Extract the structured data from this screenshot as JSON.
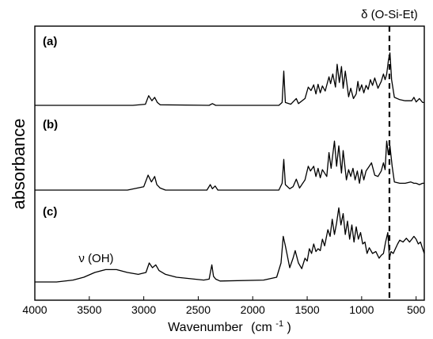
{
  "chart_data": {
    "type": "line",
    "title": "",
    "xlabel": "Wavenumber",
    "xlabel_unit": "(cm",
    "xlabel_unit_sup": "-1",
    "xlabel_unit_close": ")",
    "ylabel": "absorbance",
    "xlim": [
      4000,
      425
    ],
    "x_reversed": true,
    "xticks": [
      4000,
      3500,
      3000,
      2500,
      2000,
      1500,
      1000,
      500
    ],
    "xtick_labels": [
      "4000",
      "3500",
      "3000",
      "2500",
      "2000",
      "1500",
      "1000",
      "500"
    ],
    "grid": false,
    "legend": "none",
    "line_color": "#000000",
    "annotations": [
      {
        "text": "δ (O-Si-Et)",
        "x": 745,
        "style": "dashed vertical line"
      },
      {
        "text": "ν (OH)",
        "x": 3350,
        "panel": "(c)"
      }
    ],
    "series": [
      {
        "panel": "(a)",
        "x": [
          4000,
          3100,
          2985,
          2955,
          2925,
          2900,
          2875,
          2850,
          2400,
          2370,
          2340,
          1760,
          1730,
          1715,
          1700,
          1650,
          1600,
          1580,
          1520,
          1490,
          1465,
          1440,
          1420,
          1400,
          1380,
          1360,
          1335,
          1300,
          1285,
          1265,
          1240,
          1225,
          1205,
          1185,
          1170,
          1150,
          1120,
          1100,
          1075,
          1050,
          1035,
          1020,
          1000,
          980,
          960,
          940,
          920,
          900,
          880,
          850,
          820,
          800,
          785,
          770,
          755,
          740,
          725,
          700,
          650,
          600,
          540,
          520,
          500,
          470,
          440,
          425
        ],
        "y": [
          0.0,
          0.0,
          0.02,
          0.17,
          0.08,
          0.14,
          0.05,
          0.01,
          0.0,
          0.03,
          0.0,
          0.0,
          0.05,
          0.6,
          0.05,
          0.02,
          0.12,
          0.03,
          0.12,
          0.32,
          0.26,
          0.36,
          0.2,
          0.37,
          0.22,
          0.34,
          0.25,
          0.5,
          0.38,
          0.55,
          0.32,
          0.72,
          0.4,
          0.68,
          0.3,
          0.6,
          0.15,
          0.3,
          0.12,
          0.2,
          0.42,
          0.25,
          0.36,
          0.22,
          0.35,
          0.28,
          0.45,
          0.35,
          0.48,
          0.3,
          0.42,
          0.55,
          0.45,
          0.55,
          0.78,
          0.92,
          0.45,
          0.14,
          0.1,
          0.08,
          0.08,
          0.14,
          0.06,
          0.12,
          0.05,
          0.05
        ]
      },
      {
        "panel": "(b)",
        "x": [
          4000,
          3150,
          3000,
          2960,
          2930,
          2900,
          2880,
          2850,
          2800,
          2420,
          2390,
          2370,
          2345,
          2320,
          1760,
          1730,
          1715,
          1700,
          1660,
          1630,
          1600,
          1570,
          1520,
          1490,
          1470,
          1440,
          1420,
          1400,
          1380,
          1360,
          1320,
          1300,
          1280,
          1250,
          1230,
          1210,
          1185,
          1170,
          1140,
          1120,
          1100,
          1080,
          1060,
          1040,
          1020,
          1000,
          980,
          960,
          930,
          910,
          880,
          850,
          820,
          800,
          785,
          770,
          755,
          740,
          720,
          700,
          650,
          600,
          550,
          520,
          500,
          470,
          440,
          425
        ],
        "y": [
          0.0,
          0.0,
          0.05,
          0.22,
          0.12,
          0.2,
          0.08,
          0.03,
          0.0,
          0.0,
          0.08,
          0.02,
          0.06,
          0.0,
          0.0,
          0.1,
          0.45,
          0.08,
          0.02,
          0.05,
          0.16,
          0.03,
          0.15,
          0.35,
          0.28,
          0.35,
          0.2,
          0.32,
          0.18,
          0.3,
          0.2,
          0.55,
          0.32,
          0.72,
          0.35,
          0.65,
          0.25,
          0.58,
          0.15,
          0.3,
          0.2,
          0.32,
          0.15,
          0.28,
          0.1,
          0.3,
          0.15,
          0.28,
          0.35,
          0.4,
          0.22,
          0.2,
          0.28,
          0.4,
          0.3,
          0.72,
          0.52,
          0.65,
          0.35,
          0.12,
          0.1,
          0.1,
          0.12,
          0.1,
          0.1,
          0.08,
          0.1,
          0.1
        ]
      },
      {
        "panel": "(c)",
        "x": [
          4000,
          3800,
          3650,
          3550,
          3450,
          3350,
          3250,
          3150,
          3050,
          2980,
          2950,
          2920,
          2890,
          2860,
          2800,
          2700,
          2450,
          2400,
          2375,
          2360,
          2340,
          2300,
          1900,
          1780,
          1740,
          1720,
          1700,
          1660,
          1630,
          1610,
          1580,
          1550,
          1520,
          1500,
          1480,
          1460,
          1440,
          1420,
          1400,
          1380,
          1360,
          1340,
          1310,
          1290,
          1270,
          1250,
          1230,
          1210,
          1190,
          1170,
          1150,
          1130,
          1110,
          1090,
          1070,
          1050,
          1030,
          1010,
          990,
          970,
          950,
          930,
          900,
          870,
          840,
          820,
          800,
          780,
          760,
          745,
          730,
          710,
          690,
          670,
          650,
          620,
          590,
          560,
          540,
          520,
          500,
          480,
          460,
          440,
          425
        ],
        "y": [
          0.0,
          0.0,
          0.02,
          0.05,
          0.1,
          0.13,
          0.13,
          0.1,
          0.08,
          0.1,
          0.2,
          0.15,
          0.18,
          0.12,
          0.08,
          0.05,
          0.02,
          0.03,
          0.18,
          0.06,
          0.03,
          0.01,
          0.02,
          0.05,
          0.2,
          0.48,
          0.38,
          0.15,
          0.25,
          0.33,
          0.2,
          0.14,
          0.25,
          0.22,
          0.35,
          0.3,
          0.4,
          0.32,
          0.35,
          0.33,
          0.45,
          0.38,
          0.55,
          0.48,
          0.66,
          0.5,
          0.62,
          0.78,
          0.6,
          0.72,
          0.5,
          0.64,
          0.45,
          0.6,
          0.42,
          0.58,
          0.45,
          0.52,
          0.4,
          0.42,
          0.3,
          0.36,
          0.3,
          0.32,
          0.25,
          0.28,
          0.3,
          0.42,
          0.52,
          0.25,
          0.32,
          0.3,
          0.35,
          0.4,
          0.44,
          0.42,
          0.46,
          0.42,
          0.45,
          0.48,
          0.45,
          0.4,
          0.42,
          0.35,
          0.3
        ]
      }
    ]
  }
}
